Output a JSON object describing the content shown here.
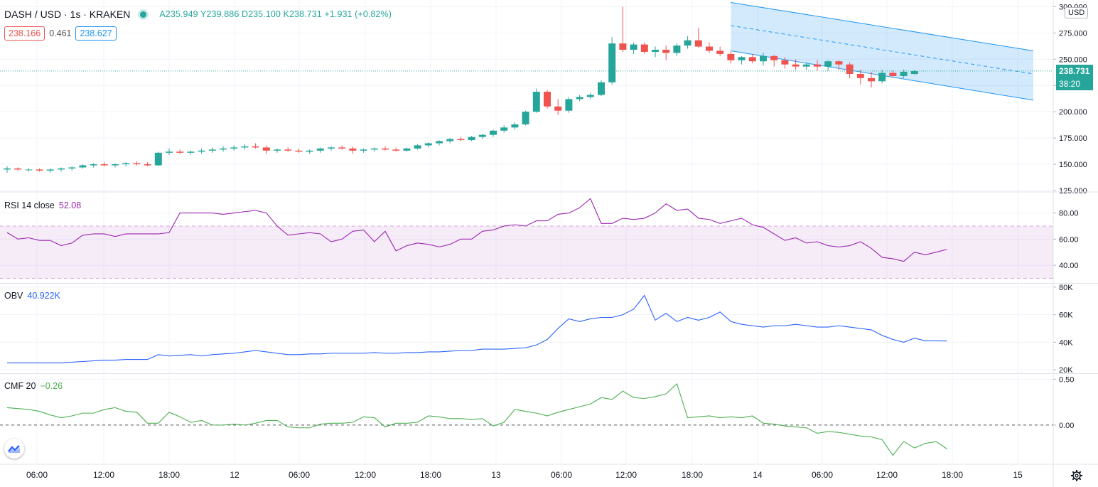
{
  "header": {
    "symbol": "DASH / USD · 1s · KRAKEN",
    "ohlc": "A235.949  Y239.886  D235.100  K238.731  +1.931 (+0.82%)",
    "bid": "238.166",
    "spread": "0.461",
    "ask": "238.627"
  },
  "currency_button": "USD",
  "last_price_label": "238.731",
  "countdown_label": "38:20",
  "colors": {
    "up": "#26a69a",
    "down": "#ef5350",
    "rsi": "#9c27b0",
    "obv": "#2962ff",
    "cmf": "#4caf50",
    "channel": "#2196f3"
  },
  "chart_data": [
    {
      "type": "candlestick",
      "title": "DASH / USD · 1s · KRAKEN",
      "ylim": [
        125,
        305
      ],
      "yticks": [
        "300.000",
        "275.000",
        "250.000",
        "225.000",
        "200.000",
        "175.000",
        "150.000",
        "125.000"
      ],
      "x_labels": [
        "06:00",
        "12:00",
        "18:00",
        "12",
        "06:00",
        "12:00",
        "18:00",
        "13",
        "06:00",
        "12:00",
        "18:00",
        "14",
        "06:00",
        "12:00",
        "18:00",
        "15"
      ],
      "ohlc": [
        [
          145,
          148,
          142,
          146
        ],
        [
          146,
          147,
          144,
          145
        ],
        [
          145,
          146,
          143,
          145
        ],
        [
          145,
          146,
          143,
          144
        ],
        [
          144,
          146,
          142,
          145
        ],
        [
          145,
          147,
          143,
          146
        ],
        [
          146,
          148,
          144,
          147
        ],
        [
          147,
          150,
          146,
          149
        ],
        [
          149,
          151,
          147,
          150
        ],
        [
          150,
          152,
          148,
          149
        ],
        [
          149,
          151,
          147,
          150
        ],
        [
          150,
          152,
          148,
          151
        ],
        [
          151,
          153,
          149,
          150
        ],
        [
          150,
          152,
          148,
          149
        ],
        [
          149,
          162,
          148,
          161
        ],
        [
          161,
          165,
          159,
          162
        ],
        [
          162,
          164,
          160,
          161
        ],
        [
          161,
          163,
          159,
          162
        ],
        [
          162,
          165,
          160,
          163
        ],
        [
          163,
          166,
          161,
          164
        ],
        [
          164,
          167,
          162,
          165
        ],
        [
          165,
          168,
          163,
          166
        ],
        [
          166,
          169,
          164,
          167
        ],
        [
          167,
          170,
          165,
          166
        ],
        [
          166,
          168,
          160,
          163
        ],
        [
          163,
          165,
          161,
          164
        ],
        [
          164,
          166,
          162,
          163
        ],
        [
          163,
          165,
          161,
          162
        ],
        [
          162,
          164,
          160,
          163
        ],
        [
          163,
          166,
          161,
          165
        ],
        [
          165,
          167,
          163,
          166
        ],
        [
          166,
          168,
          164,
          165
        ],
        [
          165,
          167,
          160,
          163
        ],
        [
          163,
          165,
          161,
          164
        ],
        [
          164,
          166,
          162,
          165
        ],
        [
          165,
          167,
          163,
          164
        ],
        [
          164,
          166,
          162,
          163
        ],
        [
          163,
          166,
          162,
          165
        ],
        [
          165,
          169,
          164,
          168
        ],
        [
          168,
          171,
          166,
          170
        ],
        [
          170,
          173,
          168,
          172
        ],
        [
          172,
          175,
          170,
          174
        ],
        [
          174,
          176,
          172,
          173
        ],
        [
          173,
          177,
          172,
          176
        ],
        [
          176,
          179,
          174,
          178
        ],
        [
          178,
          183,
          176,
          182
        ],
        [
          182,
          187,
          180,
          185
        ],
        [
          185,
          190,
          183,
          188
        ],
        [
          188,
          201,
          187,
          200
        ],
        [
          200,
          222,
          199,
          219
        ],
        [
          219,
          221,
          203,
          205
        ],
        [
          205,
          212,
          197,
          201
        ],
        [
          201,
          214,
          199,
          212
        ],
        [
          212,
          216,
          210,
          214
        ],
        [
          214,
          218,
          212,
          216
        ],
        [
          216,
          230,
          215,
          228
        ],
        [
          228,
          271,
          226,
          265
        ],
        [
          265,
          300,
          257,
          259
        ],
        [
          259,
          266,
          255,
          264
        ],
        [
          264,
          266,
          255,
          257
        ],
        [
          257,
          262,
          252,
          259
        ],
        [
          259,
          263,
          249,
          256
        ],
        [
          256,
          265,
          253,
          263
        ],
        [
          263,
          272,
          260,
          268
        ],
        [
          268,
          280,
          261,
          262
        ],
        [
          262,
          266,
          256,
          258
        ],
        [
          258,
          262,
          253,
          255
        ],
        [
          255,
          258,
          246,
          249
        ],
        [
          249,
          253,
          245,
          252
        ],
        [
          252,
          255,
          246,
          248
        ],
        [
          248,
          256,
          244,
          253
        ],
        [
          253,
          254,
          243,
          249
        ],
        [
          249,
          252,
          241,
          245
        ],
        [
          245,
          250,
          240,
          243
        ],
        [
          243,
          247,
          240,
          245
        ],
        [
          245,
          249,
          239,
          243
        ],
        [
          243,
          249,
          239,
          248
        ],
        [
          248,
          249,
          240,
          245
        ],
        [
          245,
          247,
          232,
          236
        ],
        [
          236,
          240,
          226,
          232
        ],
        [
          232,
          238,
          223,
          229
        ],
        [
          229,
          240,
          227,
          237
        ],
        [
          237,
          239,
          233,
          234
        ],
        [
          234,
          240,
          232,
          238
        ],
        [
          235.949,
          239.886,
          235.1,
          238.731
        ]
      ],
      "regression_channel": {
        "start": {
          "time_index": 67,
          "upper": 304,
          "mid": 282,
          "lower": 258
        },
        "end": {
          "time_index": 95,
          "upper": 258,
          "mid": 236,
          "lower": 211
        }
      }
    },
    {
      "type": "line",
      "title": "RSI 14 close",
      "last_value": "52.08",
      "ylim": [
        27,
        95
      ],
      "yticks": [
        "80.00",
        "60.00",
        "40.00"
      ],
      "band": [
        30,
        70
      ],
      "values": [
        65,
        60,
        61,
        59,
        59,
        55,
        57,
        63,
        64,
        64,
        62,
        64,
        64,
        64,
        64,
        65,
        80,
        80,
        80,
        80,
        79,
        80,
        81,
        82,
        80,
        70,
        63,
        64,
        65,
        64,
        58,
        60,
        66,
        67,
        58,
        66,
        51,
        55,
        57,
        56,
        54,
        56,
        60,
        60,
        66,
        67,
        70,
        71,
        70,
        74,
        74,
        79,
        80,
        84,
        91,
        72,
        72,
        76,
        75,
        76,
        80,
        87,
        82,
        83,
        76,
        75,
        72,
        74,
        76,
        71,
        69,
        64,
        59,
        61,
        57,
        58,
        55,
        54,
        55,
        58,
        53,
        46,
        45,
        43,
        50,
        48,
        50,
        52.08
      ]
    },
    {
      "type": "line",
      "title": "OBV",
      "last_value": "40.922K",
      "ylim": [
        18,
        82
      ],
      "yticks": [
        "80K",
        "60K",
        "40K",
        "20K"
      ],
      "values": [
        25,
        25,
        25,
        25,
        25,
        25,
        25.5,
        26,
        26.5,
        27,
        27,
        27.5,
        27.5,
        27.5,
        31,
        30,
        30.5,
        31,
        30,
        31,
        31.5,
        32,
        33,
        34,
        33,
        32,
        31,
        31,
        31.5,
        31.5,
        32,
        32,
        32,
        32,
        32.5,
        32,
        32,
        32.5,
        32.5,
        33,
        33,
        33.5,
        34,
        34,
        35,
        35,
        35,
        35.5,
        36,
        38,
        42,
        50,
        57,
        55,
        57,
        58,
        58,
        60,
        64,
        74,
        56,
        61,
        55,
        58,
        56,
        58,
        62,
        55,
        53,
        52,
        51,
        52,
        52,
        53,
        52,
        51,
        51,
        52,
        51,
        50,
        49,
        45,
        42,
        40,
        43,
        41,
        41,
        40.922
      ]
    },
    {
      "type": "line",
      "title": "CMF 20",
      "last_value": "−0.26",
      "ylim": [
        -0.42,
        0.55
      ],
      "yticks": [
        "0.50",
        "0.00"
      ],
      "zero_line": true,
      "values": [
        0.19,
        0.18,
        0.17,
        0.15,
        0.11,
        0.08,
        0.1,
        0.13,
        0.13,
        0.17,
        0.19,
        0.15,
        0.14,
        0.02,
        0.02,
        0.14,
        0.09,
        0.03,
        0.05,
        0.0,
        0.0,
        0.01,
        0.0,
        0.02,
        0.05,
        0.05,
        -0.02,
        -0.03,
        -0.03,
        0.01,
        0.02,
        0.02,
        0.03,
        0.09,
        0.08,
        -0.02,
        0.02,
        0.02,
        0.03,
        0.1,
        0.09,
        0.07,
        0.07,
        0.06,
        0.07,
        -0.01,
        0.03,
        0.17,
        0.15,
        0.13,
        0.1,
        0.14,
        0.17,
        0.2,
        0.23,
        0.3,
        0.28,
        0.37,
        0.3,
        0.29,
        0.31,
        0.34,
        0.45,
        0.08,
        0.09,
        0.1,
        0.08,
        0.09,
        0.08,
        0.1,
        0.02,
        0.01,
        -0.01,
        -0.02,
        -0.03,
        -0.09,
        -0.07,
        -0.08,
        -0.1,
        -0.12,
        -0.13,
        -0.16,
        -0.33,
        -0.18,
        -0.25,
        -0.2,
        -0.18,
        -0.26
      ]
    }
  ]
}
